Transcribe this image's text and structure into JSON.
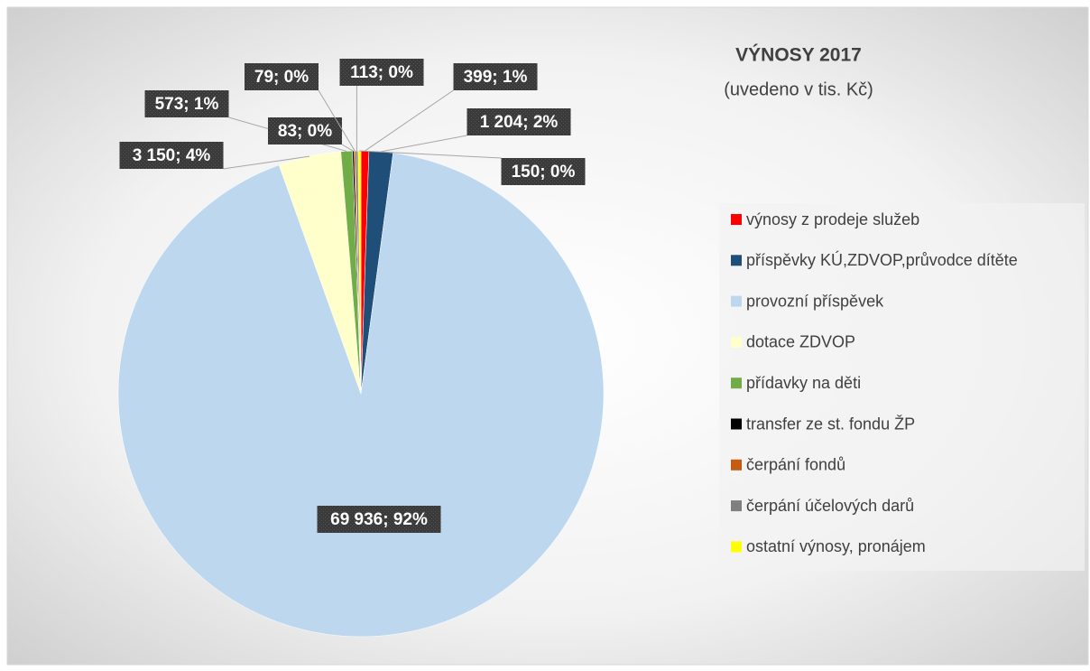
{
  "chart_data": {
    "type": "pie",
    "title": "VÝNOSY 2017",
    "subtitle": "(uvedeno v tis. Kč)",
    "categories": [
      "výnosy z prodeje služeb",
      "příspěvky KÚ,ZDVOP,průvodce dítěte",
      "provozní příspěvek",
      "dotace ZDVOP",
      "přídavky na děti",
      "transfer ze st. fondu ŽP",
      "čerpání fondů",
      "čerpání účelových darů",
      "ostatní výnosy, pronájem"
    ],
    "values": [
      399,
      1204,
      69936,
      3150,
      573,
      83,
      79,
      113,
      150
    ],
    "value_labels": [
      "399; 1%",
      "1 204; 2%",
      "69 936; 92%",
      "3 150; 4%",
      "573; 1%",
      "83; 0%",
      "79; 0%",
      "113; 0%",
      "150; 0%"
    ],
    "colors": [
      "#ff0000",
      "#1f4e79",
      "#bdd7ee",
      "#ffffcc",
      "#70ad47",
      "#000000",
      "#c55a11",
      "#7f7f7f",
      "#ffff00"
    ],
    "legend": "right"
  }
}
